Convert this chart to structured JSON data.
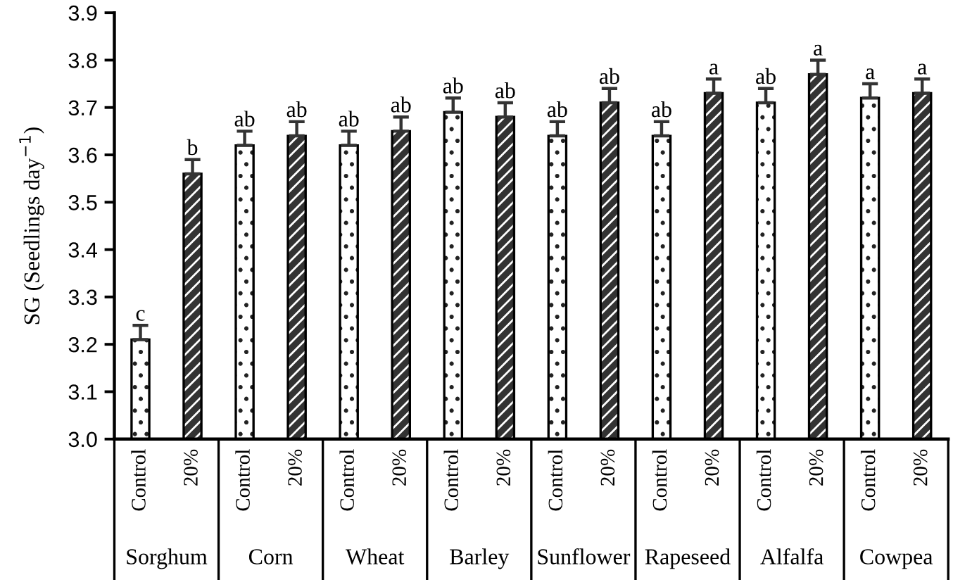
{
  "chart_data": {
    "type": "bar",
    "ylabel": "SG (Seedlings day$^{−1}$)",
    "categories": [
      "Sorghum",
      "Corn",
      "Wheat",
      "Barley",
      "Sunflower",
      "Rapeseed",
      "Alfalfa",
      "Cowpea"
    ],
    "series": [
      {
        "name": "Control",
        "color": "#ffffff",
        "values": [
          3.21,
          3.62,
          3.62,
          3.69,
          3.64,
          3.64,
          3.71,
          3.72
        ],
        "errors": [
          0.03,
          0.03,
          0.03,
          0.03,
          0.03,
          0.03,
          0.03,
          0.03
        ],
        "value_labels": [
          "c",
          "ab",
          "ab",
          "ab",
          "ab",
          "ab",
          "ab",
          "a"
        ]
      },
      {
        "name": "20%",
        "color": "#333333",
        "values": [
          3.56,
          3.64,
          3.65,
          3.68,
          3.71,
          3.73,
          3.77,
          3.73
        ],
        "errors": [
          0.03,
          0.03,
          0.03,
          0.03,
          0.03,
          0.03,
          0.03,
          0.03
        ],
        "value_labels": [
          "b",
          "ab",
          "ab",
          "ab",
          "ab",
          "a",
          "a",
          "a"
        ]
      }
    ],
    "ylim": [
      3.0,
      3.9
    ],
    "yticks": [
      {
        "value": 3.0,
        "label": "3.0"
      },
      3.1,
      3.2,
      3.3,
      3.4,
      3.5,
      3.6,
      3.7,
      3.8,
      3.9
    ],
    "grid": false,
    "legend": false
  }
}
